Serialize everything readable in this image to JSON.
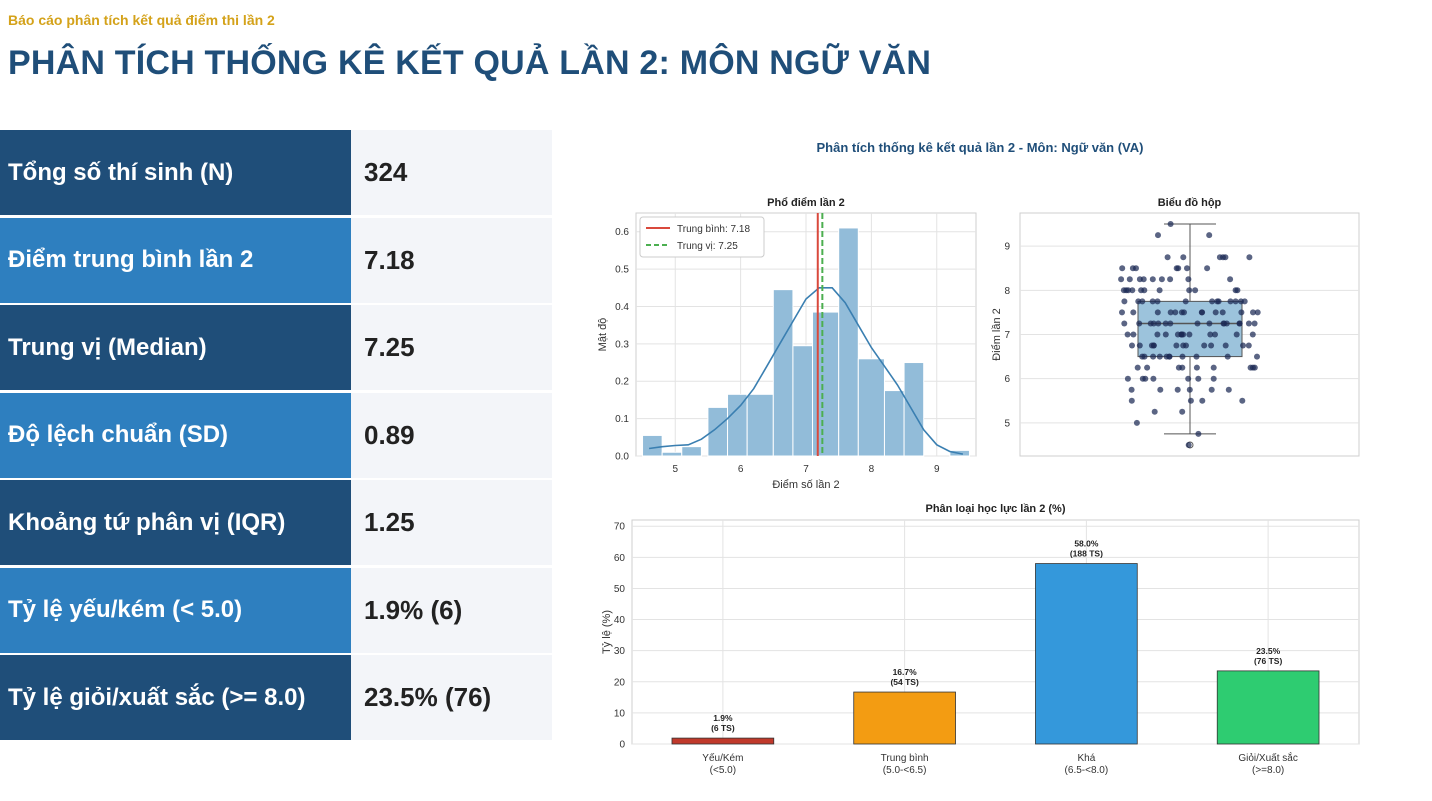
{
  "header": {
    "subtitle": "Báo cáo phân tích kết quả điểm thi lần 2",
    "title": "PHÂN TÍCH THỐNG KÊ KẾT QUẢ LẦN 2: MÔN NGỮ VĂN"
  },
  "stats": [
    {
      "label": "Tổng số thí sinh (N)",
      "value": "324",
      "color": "#1f4e79"
    },
    {
      "label": "Điểm trung bình lần 2",
      "value": "7.18",
      "color": "#2e7fbf"
    },
    {
      "label": "Trung vị (Median)",
      "value": "7.25",
      "color": "#1f4e79"
    },
    {
      "label": "Độ lệch chuẩn (SD)",
      "value": "0.89",
      "color": "#2e7fbf"
    },
    {
      "label": "Khoảng tứ phân vị (IQR)",
      "value": "1.25",
      "color": "#1f4e79"
    },
    {
      "label": "Tỷ lệ yếu/kém (< 5.0)",
      "value": "1.9% (6)",
      "color": "#2e7fbf"
    },
    {
      "label": "Tỷ lệ giỏi/xuất sắc (>= 8.0)",
      "value": "23.5% (76)",
      "color": "#1f4e79"
    }
  ],
  "figure_title": "Phân tích thống kê kết quả lần 2 - Môn: Ngữ văn (VA)",
  "chart_data": [
    {
      "type": "bar",
      "subtype": "histogram",
      "title": "Phổ điểm lần 2",
      "xlabel": "Điểm số lần 2",
      "ylabel": "Mật độ",
      "xlim": [
        4.4,
        9.6
      ],
      "ylim": [
        0,
        0.65
      ],
      "xticks": [
        5,
        6,
        7,
        8,
        9
      ],
      "yticks": [
        0.0,
        0.1,
        0.2,
        0.3,
        0.4,
        0.5,
        0.6
      ],
      "bins": [
        {
          "x0": 4.5,
          "x1": 4.8,
          "value": 0.055
        },
        {
          "x0": 4.8,
          "x1": 5.1,
          "value": 0.01
        },
        {
          "x0": 5.1,
          "x1": 5.4,
          "value": 0.025
        },
        {
          "x0": 5.5,
          "x1": 5.8,
          "value": 0.13
        },
        {
          "x0": 5.8,
          "x1": 6.1,
          "value": 0.165
        },
        {
          "x0": 6.1,
          "x1": 6.5,
          "value": 0.165
        },
        {
          "x0": 6.5,
          "x1": 6.8,
          "value": 0.445
        },
        {
          "x0": 6.8,
          "x1": 7.1,
          "value": 0.295
        },
        {
          "x0": 7.1,
          "x1": 7.5,
          "value": 0.385
        },
        {
          "x0": 7.5,
          "x1": 7.8,
          "value": 0.61
        },
        {
          "x0": 7.8,
          "x1": 8.2,
          "value": 0.26
        },
        {
          "x0": 8.2,
          "x1": 8.5,
          "value": 0.175
        },
        {
          "x0": 8.5,
          "x1": 8.8,
          "value": 0.25
        },
        {
          "x0": 9.2,
          "x1": 9.5,
          "value": 0.015
        }
      ],
      "kde": {
        "x": [
          4.6,
          4.8,
          5.0,
          5.2,
          5.4,
          5.6,
          5.8,
          6.0,
          6.2,
          6.4,
          6.6,
          6.8,
          7.0,
          7.2,
          7.4,
          7.6,
          7.8,
          8.0,
          8.2,
          8.4,
          8.6,
          8.8,
          9.0,
          9.2,
          9.4
        ],
        "y": [
          0.02,
          0.025,
          0.028,
          0.03,
          0.045,
          0.07,
          0.1,
          0.135,
          0.18,
          0.24,
          0.3,
          0.36,
          0.42,
          0.45,
          0.45,
          0.41,
          0.35,
          0.29,
          0.24,
          0.19,
          0.13,
          0.07,
          0.03,
          0.012,
          0.005
        ]
      },
      "mean": 7.18,
      "median": 7.25,
      "legend": [
        "Trung bình: 7.18",
        "Trung vị: 7.25"
      ],
      "legend_position": "top-left",
      "colors": {
        "bars": "#92bcd9",
        "kde": "#3a7fb1",
        "mean": "#d9493c",
        "median": "#4caf50"
      }
    },
    {
      "type": "scatter",
      "subtype": "boxplot",
      "title": "Biểu đồ hộp",
      "ylabel": "Điểm lần 2",
      "ylim": [
        4.25,
        9.75
      ],
      "yticks": [
        5,
        6,
        7,
        8,
        9
      ],
      "box": {
        "q1": 6.5,
        "median": 7.25,
        "q3": 7.75,
        "whisker_low": 4.75,
        "whisker_high": 9.5,
        "outliers": [
          4.5
        ]
      },
      "score_levels": [
        4.5,
        4.75,
        5,
        5.25,
        5.5,
        5.75,
        6,
        6.25,
        6.5,
        6.75,
        7,
        7.25,
        7.5,
        7.75,
        8,
        8.25,
        8.5,
        8.75,
        9.25,
        9.5
      ],
      "colors": {
        "box": "#9cc3dc",
        "points": "#1c2a55"
      }
    },
    {
      "type": "bar",
      "title": "Phân loại học lực lần 2 (%)",
      "ylabel": "Tỷ lệ (%)",
      "ylim": [
        0,
        72
      ],
      "yticks": [
        0,
        10,
        20,
        30,
        40,
        50,
        60,
        70
      ],
      "categories": [
        "Yếu/Kém\n(<5.0)",
        "Trung bình\n(5.0-<6.5)",
        "Khá\n(6.5-<8.0)",
        "Giỏi/Xuất sắc\n(>=8.0)"
      ],
      "values": [
        1.9,
        16.7,
        58.0,
        23.5
      ],
      "labels": [
        "1.9%\n(6 TS)",
        "16.7%\n(54 TS)",
        "58.0%\n(188 TS)",
        "23.5%\n(76 TS)"
      ],
      "colors": [
        "#c0392b",
        "#f39c12",
        "#3498db",
        "#2ecc71"
      ]
    }
  ]
}
